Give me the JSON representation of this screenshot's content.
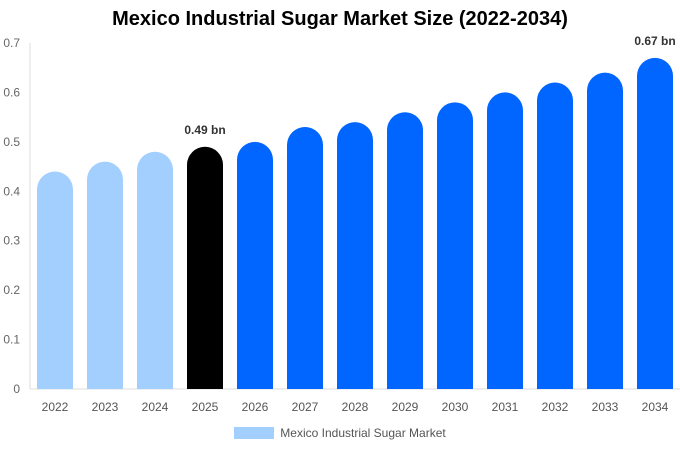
{
  "chart_data": {
    "type": "bar",
    "title": "Mexico Industrial Sugar Market Size (2022-2034)",
    "categories": [
      "2022",
      "2023",
      "2024",
      "2025",
      "2026",
      "2027",
      "2028",
      "2029",
      "2030",
      "2031",
      "2032",
      "2033",
      "2034"
    ],
    "series": [
      {
        "name": "Mexico Industrial Sugar Market",
        "values": [
          0.44,
          0.46,
          0.48,
          0.49,
          0.5,
          0.53,
          0.54,
          0.56,
          0.58,
          0.6,
          0.62,
          0.64,
          0.67
        ]
      }
    ],
    "ylim": [
      0,
      0.7
    ],
    "yticks": [
      "0",
      "0.1",
      "0.2",
      "0.3",
      "0.4",
      "0.5",
      "0.6",
      "0.7"
    ],
    "data_labels": {
      "3": "0.49 bn",
      "12": "0.67 bn"
    },
    "colors": {
      "historical": "#A3CFFF",
      "current": "#000000",
      "forecast": "#0066FF"
    },
    "grid": false,
    "legend_position": "bottom"
  }
}
